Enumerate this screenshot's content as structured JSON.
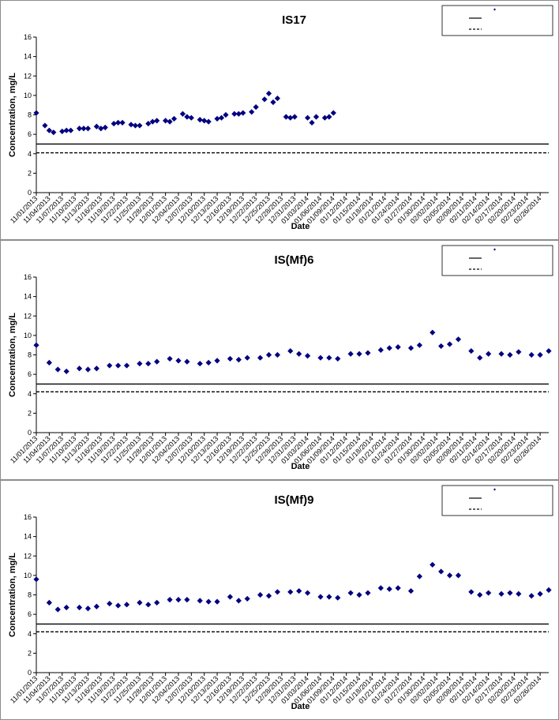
{
  "chart_data": [
    {
      "type": "scatter",
      "title": "IS17",
      "xlabel": "Date",
      "ylabel": "Concentration, mg/L",
      "ylim": [
        0,
        16
      ],
      "yticks": [
        "0",
        "2",
        "4",
        "6",
        "8",
        "10",
        "12",
        "14",
        "16"
      ],
      "xlim": [
        "11/01/2013",
        "02/28/2014"
      ],
      "xticks": [
        "11/01/2013",
        "11/04/2013",
        "11/07/2013",
        "11/10/2013",
        "11/13/2013",
        "11/16/2013",
        "11/19/2013",
        "11/22/2013",
        "11/25/2013",
        "11/28/2013",
        "12/01/2013",
        "12/04/2013",
        "12/07/2013",
        "12/10/2013",
        "12/13/2013",
        "12/16/2013",
        "12/19/2013",
        "12/22/2013",
        "12/25/2013",
        "12/28/2013",
        "12/31/2013",
        "01/03/2014",
        "01/06/2014",
        "01/09/2014",
        "01/12/2014",
        "01/15/2014",
        "01/18/2014",
        "01/21/2014",
        "01/24/2014",
        "01/27/2014",
        "01/30/2014",
        "02/02/2014",
        "02/05/2014",
        "02/08/2014",
        "02/11/2014",
        "02/14/2014",
        "02/17/2014",
        "02/20/2014",
        "02/23/2014",
        "02/26/2014"
      ],
      "grid": false,
      "legend_position": "top-right",
      "series": [
        {
          "color": "#000080",
          "marker": "diamond",
          "points": [
            [
              "11/01/2013",
              8.2
            ],
            [
              "11/03/2013",
              6.9
            ],
            [
              "11/04/2013",
              6.4
            ],
            [
              "11/05/2013",
              6.2
            ],
            [
              "11/07/2013",
              6.3
            ],
            [
              "11/08/2013",
              6.4
            ],
            [
              "11/09/2013",
              6.4
            ],
            [
              "11/11/2013",
              6.6
            ],
            [
              "11/12/2013",
              6.6
            ],
            [
              "11/13/2013",
              6.6
            ],
            [
              "11/15/2013",
              6.8
            ],
            [
              "11/16/2013",
              6.6
            ],
            [
              "11/17/2013",
              6.7
            ],
            [
              "11/19/2013",
              7.1
            ],
            [
              "11/20/2013",
              7.2
            ],
            [
              "11/21/2013",
              7.2
            ],
            [
              "11/23/2013",
              7.0
            ],
            [
              "11/24/2013",
              6.9
            ],
            [
              "11/25/2013",
              6.9
            ],
            [
              "11/27/2013",
              7.1
            ],
            [
              "11/28/2013",
              7.3
            ],
            [
              "11/29/2013",
              7.4
            ],
            [
              "12/01/2013",
              7.4
            ],
            [
              "12/02/2013",
              7.3
            ],
            [
              "12/03/2013",
              7.6
            ],
            [
              "12/05/2013",
              8.1
            ],
            [
              "12/06/2013",
              7.8
            ],
            [
              "12/07/2013",
              7.7
            ],
            [
              "12/09/2013",
              7.5
            ],
            [
              "12/10/2013",
              7.4
            ],
            [
              "12/11/2013",
              7.3
            ],
            [
              "12/13/2013",
              7.6
            ],
            [
              "12/14/2013",
              7.7
            ],
            [
              "12/15/2013",
              8.0
            ],
            [
              "12/17/2013",
              8.1
            ],
            [
              "12/18/2013",
              8.1
            ],
            [
              "12/19/2013",
              8.2
            ],
            [
              "12/21/2013",
              8.3
            ],
            [
              "12/22/2013",
              8.8
            ],
            [
              "12/24/2013",
              9.6
            ],
            [
              "12/25/2013",
              10.2
            ],
            [
              "12/26/2013",
              9.3
            ],
            [
              "12/27/2013",
              9.7
            ],
            [
              "12/29/2013",
              7.8
            ],
            [
              "12/30/2013",
              7.7
            ],
            [
              "12/31/2013",
              7.8
            ],
            [
              "01/03/2014",
              7.7
            ],
            [
              "01/04/2014",
              7.2
            ],
            [
              "01/05/2014",
              7.8
            ],
            [
              "01/07/2014",
              7.7
            ],
            [
              "01/08/2014",
              7.8
            ],
            [
              "01/09/2014",
              8.2
            ]
          ]
        },
        {
          "kind": "hline",
          "style": "solid",
          "value": 5.0
        },
        {
          "kind": "hline",
          "style": "dashed",
          "value": 4.1
        }
      ]
    },
    {
      "type": "scatter",
      "title": "IS(Mf)6",
      "xlabel": "Date",
      "ylabel": "Concentration, mg/L",
      "ylim": [
        0,
        16
      ],
      "yticks": [
        "0",
        "2",
        "4",
        "6",
        "8",
        "10",
        "12",
        "14",
        "16"
      ],
      "xlim": [
        "11/01/2013",
        "02/28/2014"
      ],
      "xticks": [
        "11/01/2013",
        "11/04/2013",
        "11/07/2013",
        "11/10/2013",
        "11/13/2013",
        "11/16/2013",
        "11/19/2013",
        "11/22/2013",
        "11/25/2013",
        "11/28/2013",
        "12/01/2013",
        "12/04/2013",
        "12/07/2013",
        "12/10/2013",
        "12/13/2013",
        "12/16/2013",
        "12/19/2013",
        "12/22/2013",
        "12/25/2013",
        "12/28/2013",
        "12/31/2013",
        "01/03/2014",
        "01/06/2014",
        "01/09/2014",
        "01/12/2014",
        "01/15/2014",
        "01/18/2014",
        "01/21/2014",
        "01/24/2014",
        "01/27/2014",
        "01/30/2014",
        "02/02/2014",
        "02/05/2014",
        "02/08/2014",
        "02/11/2014",
        "02/14/2014",
        "02/17/2014",
        "02/20/2014",
        "02/23/2014",
        "02/26/2014"
      ],
      "grid": false,
      "legend_position": "top-right",
      "series": [
        {
          "color": "#000080",
          "marker": "diamond",
          "points": [
            [
              "11/01/2013",
              9.0
            ],
            [
              "11/04/2013",
              7.2
            ],
            [
              "11/06/2013",
              6.5
            ],
            [
              "11/08/2013",
              6.3
            ],
            [
              "11/11/2013",
              6.6
            ],
            [
              "11/13/2013",
              6.5
            ],
            [
              "11/15/2013",
              6.6
            ],
            [
              "11/18/2013",
              6.9
            ],
            [
              "11/20/2013",
              6.9
            ],
            [
              "11/22/2013",
              6.9
            ],
            [
              "11/25/2013",
              7.1
            ],
            [
              "11/27/2013",
              7.1
            ],
            [
              "11/29/2013",
              7.3
            ],
            [
              "12/02/2013",
              7.6
            ],
            [
              "12/04/2013",
              7.4
            ],
            [
              "12/06/2013",
              7.3
            ],
            [
              "12/09/2013",
              7.1
            ],
            [
              "12/11/2013",
              7.2
            ],
            [
              "12/13/2013",
              7.4
            ],
            [
              "12/16/2013",
              7.6
            ],
            [
              "12/18/2013",
              7.5
            ],
            [
              "12/20/2013",
              7.7
            ],
            [
              "12/23/2013",
              7.7
            ],
            [
              "12/25/2013",
              8.0
            ],
            [
              "12/27/2013",
              8.0
            ],
            [
              "12/30/2013",
              8.4
            ],
            [
              "01/01/2014",
              8.1
            ],
            [
              "01/03/2014",
              7.9
            ],
            [
              "01/06/2014",
              7.7
            ],
            [
              "01/08/2014",
              7.7
            ],
            [
              "01/10/2014",
              7.6
            ],
            [
              "01/13/2014",
              8.1
            ],
            [
              "01/15/2014",
              8.1
            ],
            [
              "01/17/2014",
              8.2
            ],
            [
              "01/20/2014",
              8.5
            ],
            [
              "01/22/2014",
              8.7
            ],
            [
              "01/24/2014",
              8.8
            ],
            [
              "01/27/2014",
              8.7
            ],
            [
              "01/29/2014",
              9.0
            ],
            [
              "02/01/2014",
              10.3
            ],
            [
              "02/03/2014",
              8.9
            ],
            [
              "02/05/2014",
              9.1
            ],
            [
              "02/07/2014",
              9.6
            ],
            [
              "02/10/2014",
              8.4
            ],
            [
              "02/12/2014",
              7.7
            ],
            [
              "02/14/2014",
              8.1
            ],
            [
              "02/17/2014",
              8.1
            ],
            [
              "02/19/2014",
              8.0
            ],
            [
              "02/21/2014",
              8.3
            ],
            [
              "02/24/2014",
              8.0
            ],
            [
              "02/26/2014",
              8.0
            ],
            [
              "02/28/2014",
              8.4
            ]
          ]
        },
        {
          "kind": "hline",
          "style": "solid",
          "value": 5.0
        },
        {
          "kind": "hline",
          "style": "dashed",
          "value": 4.2
        }
      ]
    },
    {
      "type": "scatter",
      "title": "IS(Mf)9",
      "xlabel": "Date",
      "ylabel": "Concentration, mg/L",
      "ylim": [
        0,
        16
      ],
      "yticks": [
        "0",
        "2",
        "4",
        "6",
        "8",
        "10",
        "12",
        "14",
        "16"
      ],
      "xlim": [
        "11/01/2013",
        "02/28/2014"
      ],
      "xticks": [
        "11/01/2013",
        "11/04/2013",
        "11/07/2013",
        "11/10/2013",
        "11/13/2013",
        "11/16/2013",
        "11/19/2013",
        "11/22/2013",
        "11/25/2013",
        "11/28/2013",
        "12/01/2013",
        "12/04/2013",
        "12/07/2013",
        "12/10/2013",
        "12/13/2013",
        "12/16/2013",
        "12/19/2013",
        "12/22/2013",
        "12/25/2013",
        "12/28/2013",
        "12/31/2013",
        "01/03/2014",
        "01/06/2014",
        "01/09/2014",
        "01/12/2014",
        "01/15/2014",
        "01/18/2014",
        "01/21/2014",
        "01/24/2014",
        "01/27/2014",
        "01/30/2014",
        "02/02/2014",
        "02/05/2014",
        "02/08/2014",
        "02/11/2014",
        "02/14/2014",
        "02/17/2014",
        "02/20/2014",
        "02/23/2014",
        "02/26/2014"
      ],
      "grid": false,
      "legend_position": "top-right",
      "series": [
        {
          "color": "#000080",
          "marker": "diamond",
          "points": [
            [
              "11/01/2013",
              9.6
            ],
            [
              "11/04/2013",
              7.2
            ],
            [
              "11/06/2013",
              6.5
            ],
            [
              "11/08/2013",
              6.7
            ],
            [
              "11/11/2013",
              6.7
            ],
            [
              "11/13/2013",
              6.6
            ],
            [
              "11/15/2013",
              6.8
            ],
            [
              "11/18/2013",
              7.1
            ],
            [
              "11/20/2013",
              6.9
            ],
            [
              "11/22/2013",
              7.0
            ],
            [
              "11/25/2013",
              7.2
            ],
            [
              "11/27/2013",
              7.0
            ],
            [
              "11/29/2013",
              7.2
            ],
            [
              "12/02/2013",
              7.5
            ],
            [
              "12/04/2013",
              7.5
            ],
            [
              "12/06/2013",
              7.5
            ],
            [
              "12/09/2013",
              7.4
            ],
            [
              "12/11/2013",
              7.3
            ],
            [
              "12/13/2013",
              7.3
            ],
            [
              "12/16/2013",
              7.8
            ],
            [
              "12/18/2013",
              7.4
            ],
            [
              "12/20/2013",
              7.6
            ],
            [
              "12/23/2013",
              8.0
            ],
            [
              "12/25/2013",
              7.9
            ],
            [
              "12/27/2013",
              8.3
            ],
            [
              "12/30/2013",
              8.3
            ],
            [
              "01/01/2014",
              8.4
            ],
            [
              "01/03/2014",
              8.2
            ],
            [
              "01/06/2014",
              7.8
            ],
            [
              "01/08/2014",
              7.8
            ],
            [
              "01/10/2014",
              7.7
            ],
            [
              "01/13/2014",
              8.2
            ],
            [
              "01/15/2014",
              8.0
            ],
            [
              "01/17/2014",
              8.2
            ],
            [
              "01/20/2014",
              8.7
            ],
            [
              "01/22/2014",
              8.6
            ],
            [
              "01/24/2014",
              8.7
            ],
            [
              "01/27/2014",
              8.4
            ],
            [
              "01/29/2014",
              9.9
            ],
            [
              "02/01/2014",
              11.1
            ],
            [
              "02/03/2014",
              10.4
            ],
            [
              "02/05/2014",
              10.0
            ],
            [
              "02/07/2014",
              10.0
            ],
            [
              "02/10/2014",
              8.3
            ],
            [
              "02/12/2014",
              8.0
            ],
            [
              "02/14/2014",
              8.2
            ],
            [
              "02/17/2014",
              8.1
            ],
            [
              "02/19/2014",
              8.2
            ],
            [
              "02/21/2014",
              8.1
            ],
            [
              "02/24/2014",
              7.9
            ],
            [
              "02/26/2014",
              8.1
            ],
            [
              "02/28/2014",
              8.5
            ]
          ]
        },
        {
          "kind": "hline",
          "style": "solid",
          "value": 5.0
        },
        {
          "kind": "hline",
          "style": "dashed",
          "value": 4.2
        }
      ]
    }
  ]
}
